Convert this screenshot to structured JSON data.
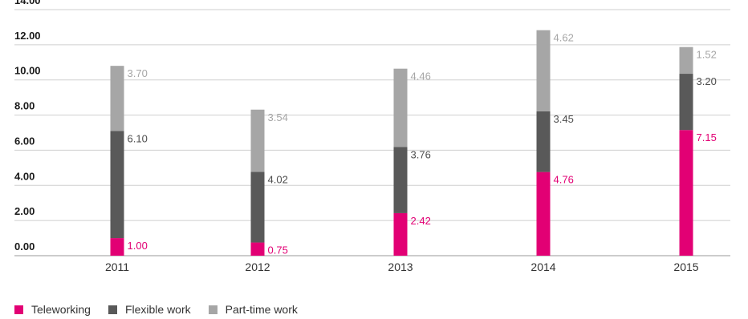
{
  "chart_data": {
    "type": "bar",
    "stacked": true,
    "title": "",
    "xlabel": "",
    "ylabel": "",
    "categories": [
      "2011",
      "2012",
      "2013",
      "2014",
      "2015"
    ],
    "series": [
      {
        "name": "Teleworking",
        "color": "#e20074",
        "values": [
          1.0,
          0.75,
          2.42,
          4.76,
          7.15
        ]
      },
      {
        "name": "Flexible work",
        "color": "#595959",
        "values": [
          6.1,
          4.02,
          3.76,
          3.45,
          3.2
        ]
      },
      {
        "name": "Part-time work",
        "color": "#a6a6a6",
        "values": [
          3.7,
          3.54,
          4.46,
          4.62,
          1.52
        ]
      }
    ],
    "label_colors": [
      "#e20074",
      "#4d4d4d",
      "#a6a6a6"
    ],
    "value_labels": [
      [
        "1.00",
        "0.75",
        "2.42",
        "4.76",
        "7.15"
      ],
      [
        "6.10",
        "4.02",
        "3.76",
        "3.45",
        "3.20"
      ],
      [
        "3.70",
        "3.54",
        "4.46",
        "4.62",
        "1.52"
      ]
    ],
    "yticks": [
      "0.00",
      "2.00",
      "4.00",
      "6.00",
      "8.00",
      "10.00",
      "12.00",
      "14.00"
    ],
    "ylim": [
      0,
      14
    ],
    "grid": true,
    "legend_position": "bottom-left"
  }
}
